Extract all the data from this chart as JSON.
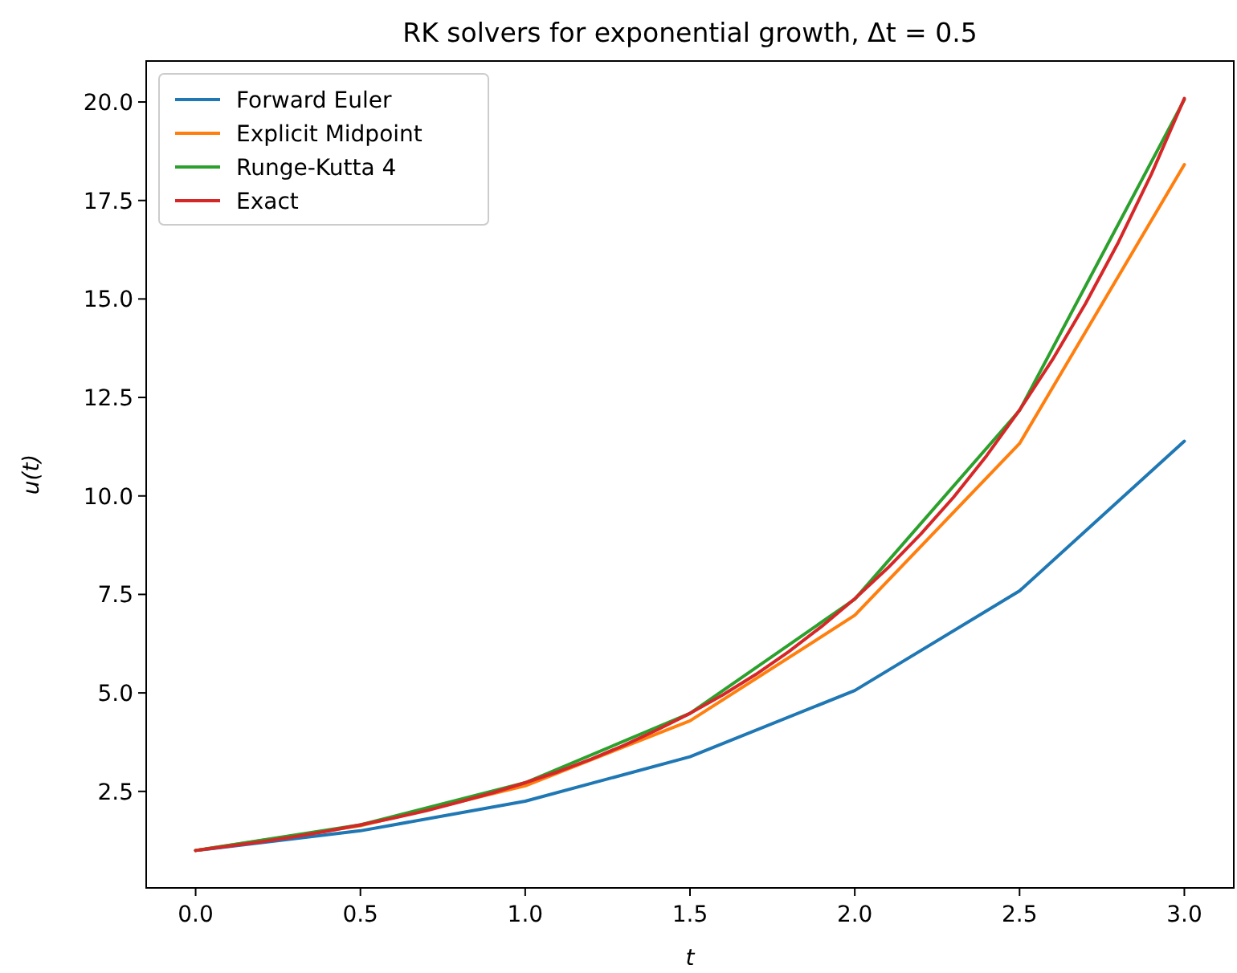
{
  "chart_data": {
    "type": "line",
    "title": "RK solvers for exponential growth, Δt = 0.5",
    "xlabel": "t",
    "ylabel": "u(t)",
    "xlim": [
      -0.15,
      3.15
    ],
    "ylim": [
      0.05,
      21.04
    ],
    "xticks": [
      {
        "value": 0,
        "label": "0.0"
      },
      {
        "value": 0.5,
        "label": "0.5"
      },
      {
        "value": 1,
        "label": "1.0"
      },
      {
        "value": 1.5,
        "label": "1.5"
      },
      {
        "value": 2,
        "label": "2.0"
      },
      {
        "value": 2.5,
        "label": "2.5"
      },
      {
        "value": 3,
        "label": "3.0"
      }
    ],
    "yticks": [
      {
        "value": 2.5,
        "label": "2.5"
      },
      {
        "value": 5,
        "label": "5.0"
      },
      {
        "value": 7.5,
        "label": "7.5"
      },
      {
        "value": 10,
        "label": "10.0"
      },
      {
        "value": 12.5,
        "label": "12.5"
      },
      {
        "value": 15,
        "label": "15.0"
      },
      {
        "value": 17.5,
        "label": "17.5"
      },
      {
        "value": 20,
        "label": "20.0"
      }
    ],
    "grid": false,
    "legend": "top left",
    "marker": "none",
    "line_style": "solid",
    "x": [
      0,
      0.5,
      1,
      1.5,
      2,
      2.5,
      3
    ],
    "series": [
      {
        "name": "Forward Euler",
        "color": "#1f77b4",
        "values": [
          1,
          1.5,
          2.25,
          3.38,
          5.06,
          7.59,
          11.39
        ]
      },
      {
        "name": "Explicit Midpoint",
        "color": "#ff7f0e",
        "values": [
          1,
          1.63,
          2.64,
          4.29,
          6.97,
          11.33,
          18.41
        ]
      },
      {
        "name": "Runge-Kutta 4",
        "color": "#2ca02c",
        "values": [
          1,
          1.65,
          2.72,
          4.48,
          7.38,
          12.17,
          20.06
        ]
      },
      {
        "name": "Exact",
        "color": "#d62728",
        "x": [
          0,
          0.1,
          0.2,
          0.3,
          0.4,
          0.5,
          0.6,
          0.7,
          0.8,
          0.9,
          1,
          1.1,
          1.2,
          1.3,
          1.4,
          1.5,
          1.6,
          1.7,
          1.8,
          1.9,
          2,
          2.1,
          2.2,
          2.3,
          2.4,
          2.5,
          2.6,
          2.7,
          2.8,
          2.9,
          3
        ],
        "values": [
          1,
          1.11,
          1.22,
          1.35,
          1.49,
          1.65,
          1.82,
          2.01,
          2.23,
          2.46,
          2.72,
          3,
          3.32,
          3.67,
          4.06,
          4.48,
          4.95,
          5.47,
          6.05,
          6.69,
          7.39,
          8.17,
          9.03,
          9.97,
          11.02,
          12.18,
          13.46,
          14.88,
          16.44,
          18.17,
          20.09
        ]
      }
    ]
  }
}
